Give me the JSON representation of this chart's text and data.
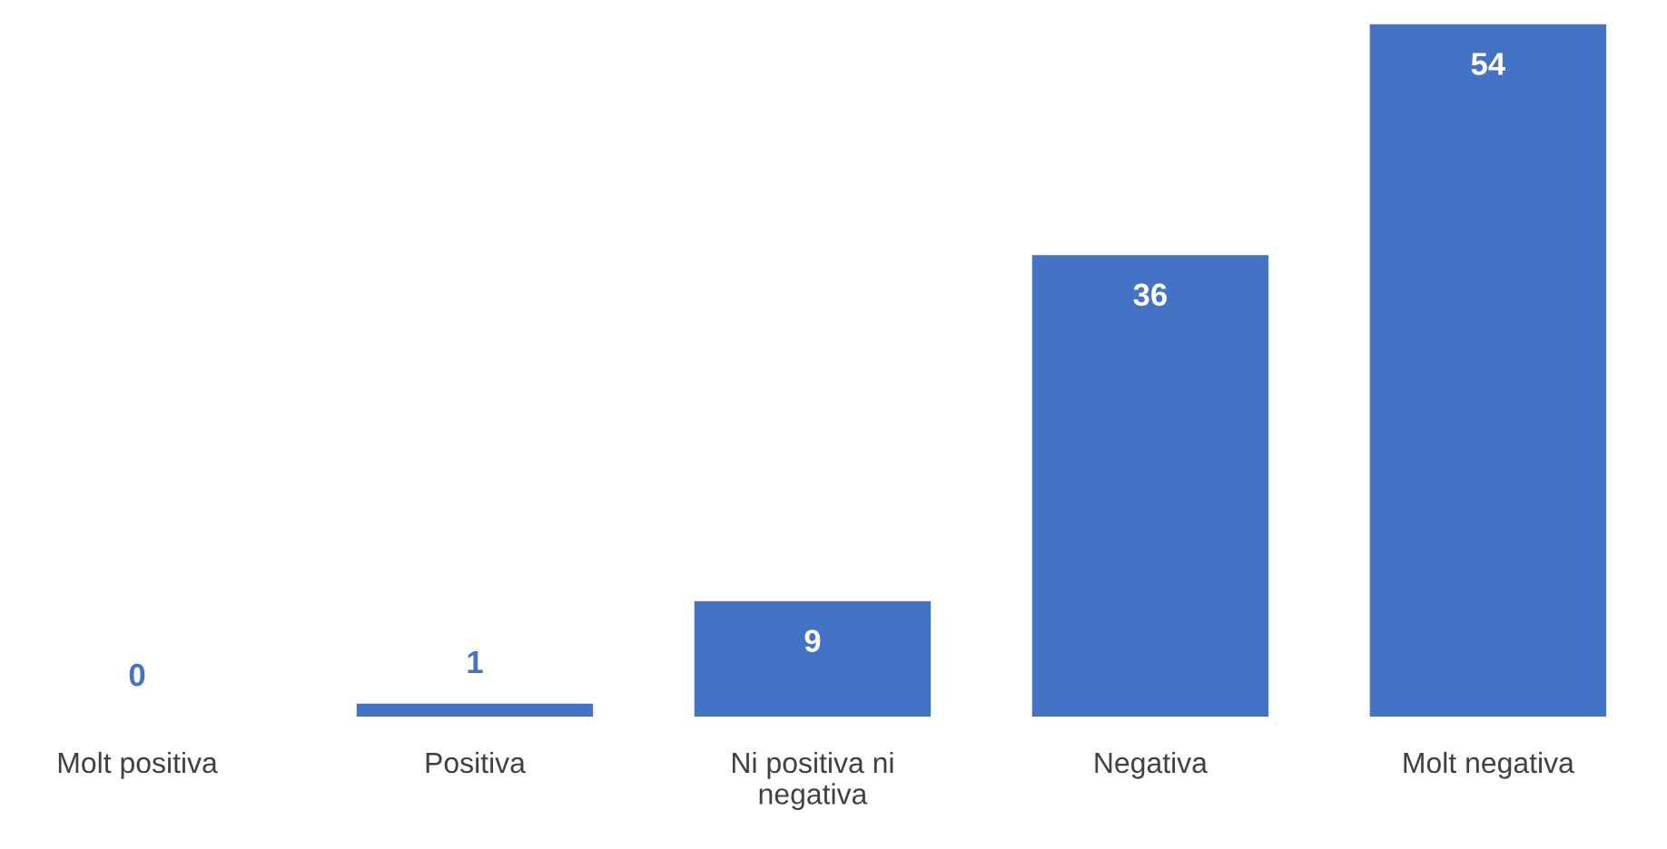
{
  "chart_data": {
    "type": "bar",
    "categories": [
      "Molt positiva",
      "Positiva",
      "Ni positiva ni\nnegativa",
      "Negativa",
      "Molt negativa"
    ],
    "values": [
      0,
      1,
      9,
      36,
      54
    ],
    "color": "#4472c4",
    "data_labels": true,
    "grid": false,
    "legend": false
  }
}
